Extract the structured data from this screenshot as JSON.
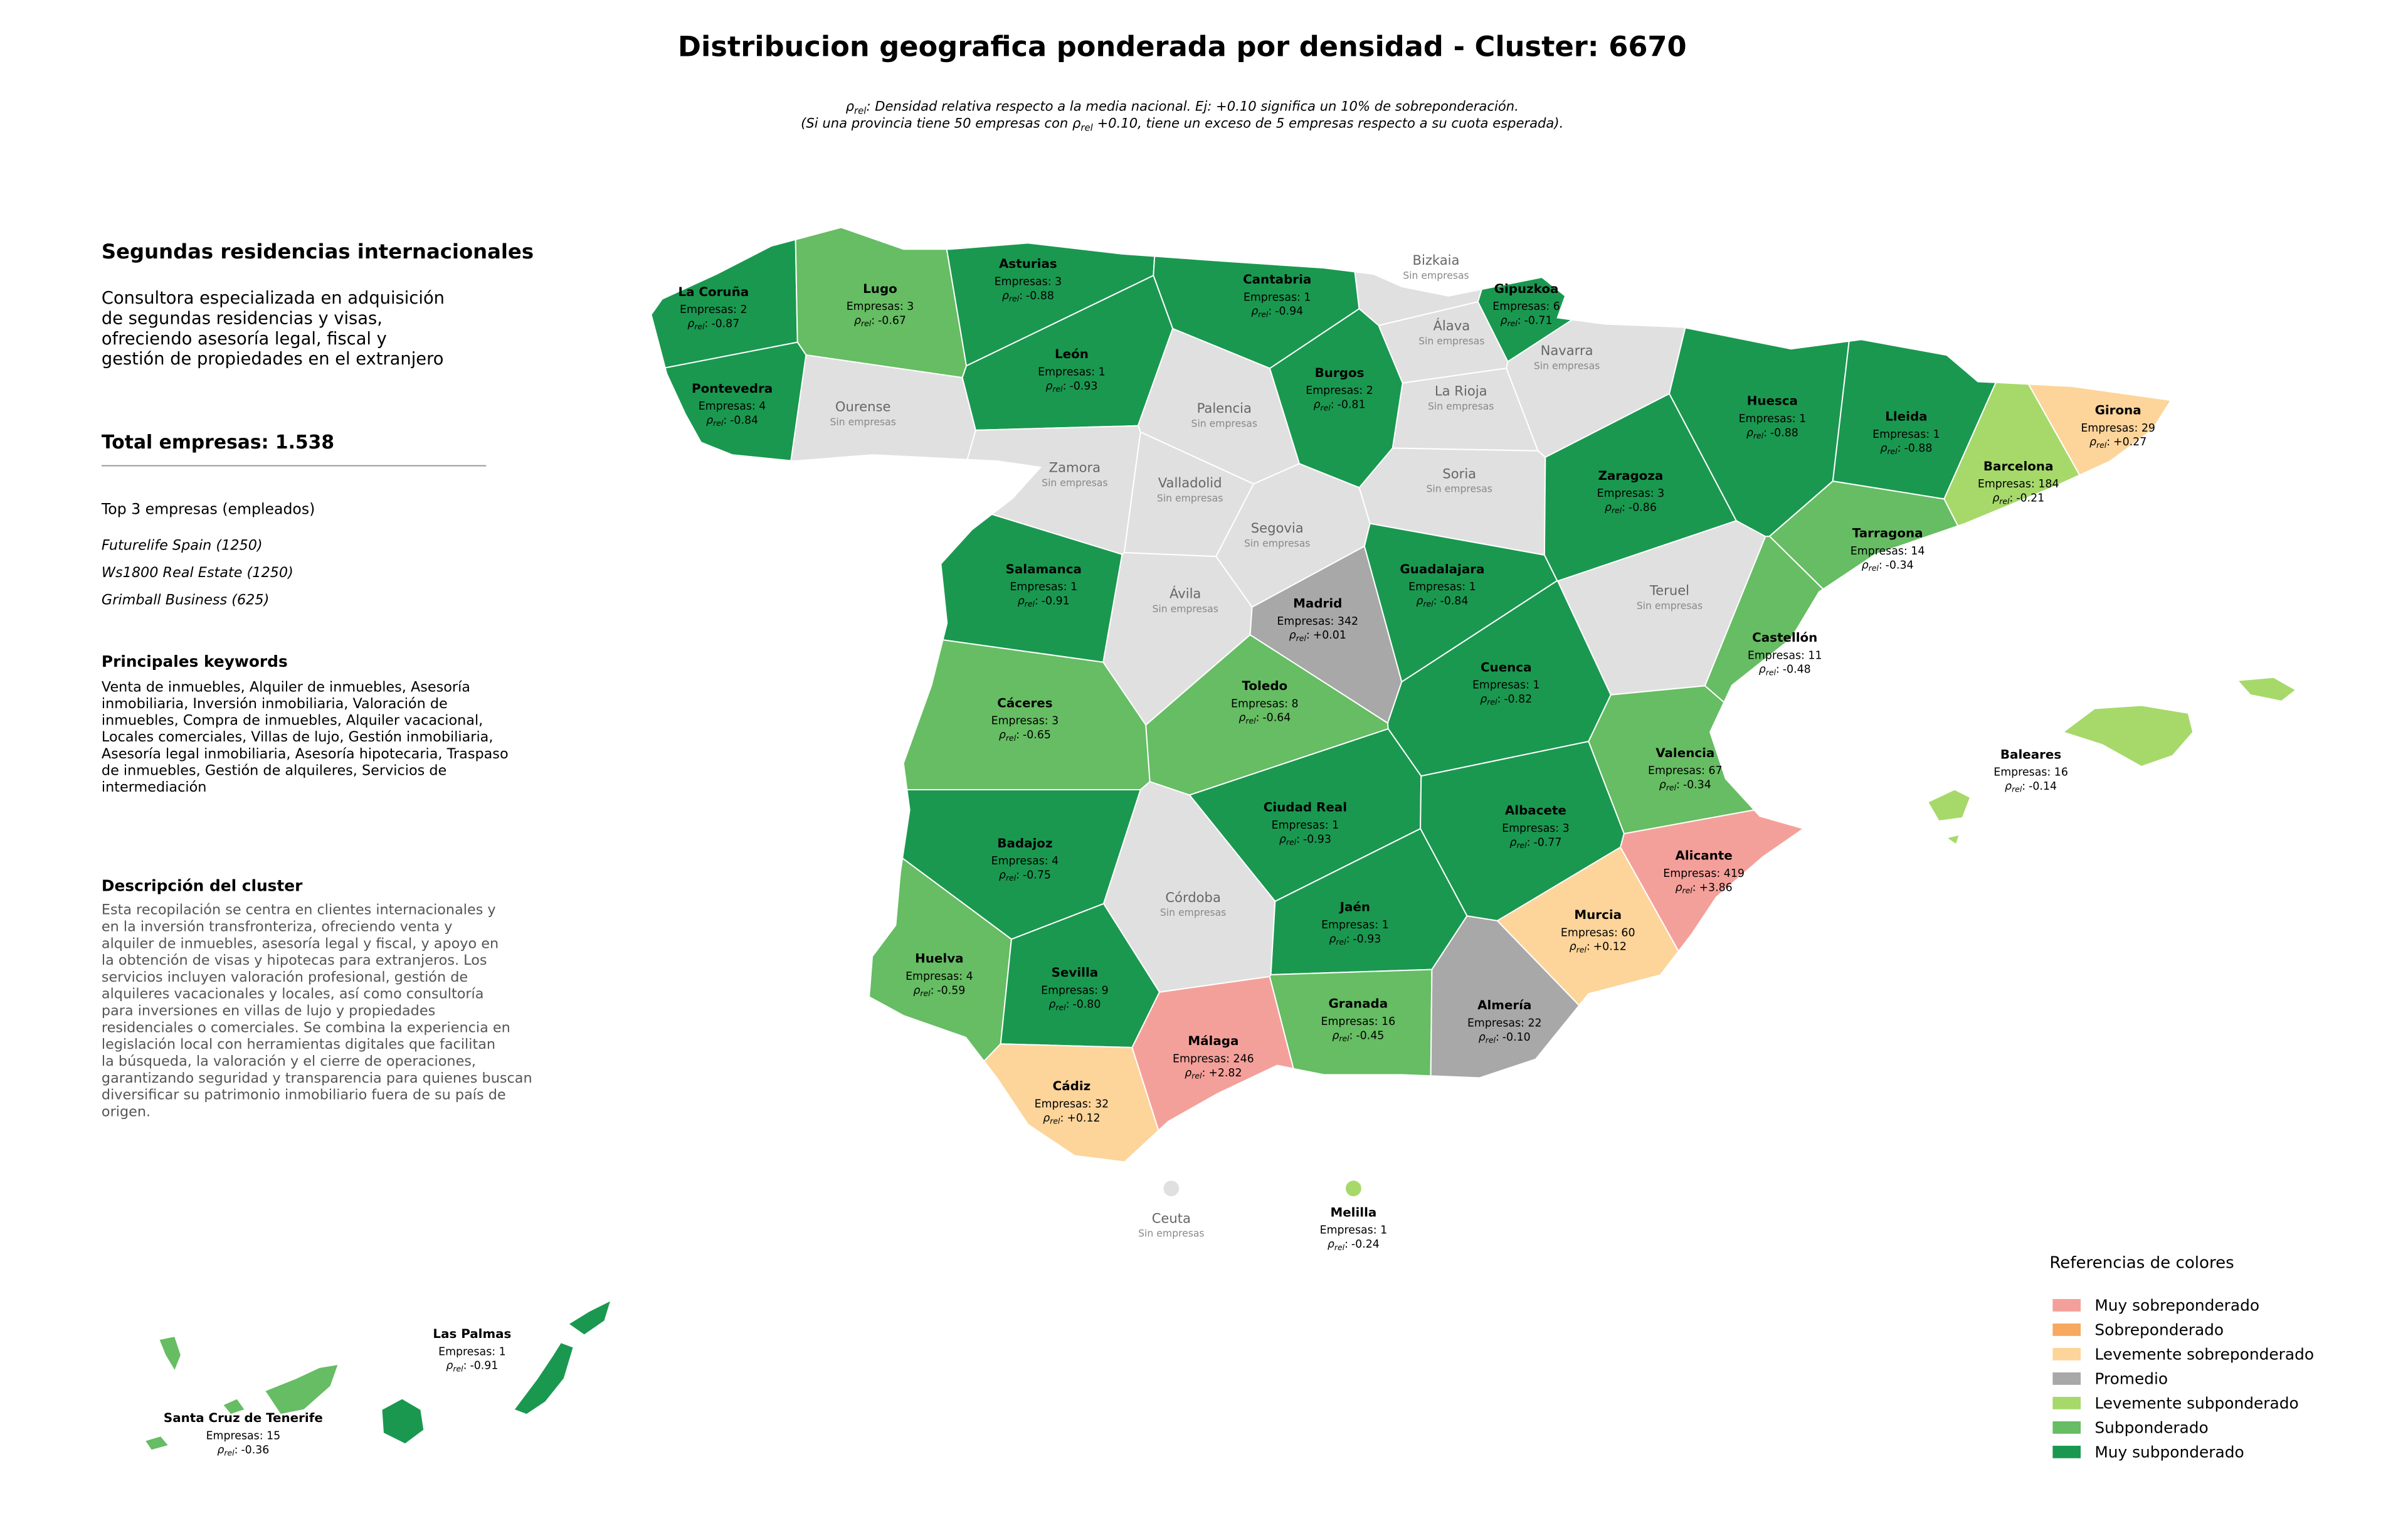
{
  "title": "Distribucion geografica ponderada por densidad - Cluster: 6670",
  "subtitle": {
    "line1": {
      "symbol": "ρ",
      "subscript": "rel",
      "text": ": Densidad relativa respecto a la media nacional. Ej: +0.10 significa un 10% de sobreponderación."
    },
    "line2": {
      "before": "(Si una provincia tiene 50 empresas con ρ",
      "subscript": "rel",
      "after": " +0.10, tiene un exceso de 5 empresas respecto a su cuota esperada)."
    }
  },
  "sidebar": {
    "heading": "Segundas residencias internacionales",
    "summary": [
      "Consultora especializada en adquisición",
      "de segundas residencias y visas,",
      "ofreciendo asesoría legal, fiscal y",
      "gestión de propiedades en el extranjero"
    ],
    "total": "Total empresas: 1.538",
    "top_title": "Top 3 empresas (empleados)",
    "top": [
      "Futurelife Spain (1250)",
      "Ws1800 Real Estate (1250)",
      "Grimball Business (625)"
    ],
    "keywords_title": "Principales keywords",
    "keywords": [
      "Venta de inmuebles, Alquiler de inmuebles, Asesoría",
      "inmobiliaria, Inversión inmobiliaria, Valoración de",
      "inmuebles, Compra de inmuebles, Alquiler vacacional,",
      "Locales comerciales, Villas de lujo, Gestión inmobiliaria,",
      "Asesoría legal inmobiliaria, Asesoría hipotecaria, Traspaso",
      "de inmuebles, Gestión de alquileres, Servicios de",
      "intermediación"
    ],
    "description_title": "Descripción del cluster",
    "description": [
      "Esta recopilación se centra en clientes internacionales y",
      "en la inversión transfronteriza, ofreciendo venta y",
      "alquiler de inmuebles, asesoría legal y fiscal, y apoyo en",
      "la obtención de visas y hipotecas para extranjeros. Los",
      "servicios incluyen valoración profesional, gestión de",
      "alquileres vacacionales y locales, así como consultoría",
      "para inversiones en villas de lujo y propiedades",
      "residenciales o comerciales. Se combina la experiencia en",
      "legislación local con herramientas digitales que facilitan",
      "la búsqueda, la valoración y el cierre de operaciones,",
      "garantizando seguridad y transparencia para quienes buscan",
      "diversificar su patrimonio inmobiliario fuera de su país de",
      "origen."
    ]
  },
  "rho_label": {
    "symbol": "ρ",
    "subscript": "rel",
    "suffix": ":"
  },
  "provinces": [
    {
      "name": "La Coruña",
      "companies": "Empresas: 2",
      "rho": "-0.87",
      "color": "#1a9850"
    },
    {
      "name": "Lugo",
      "companies": "Empresas: 3",
      "rho": "-0.67",
      "color": "#66bd63"
    },
    {
      "name": "Asturias",
      "companies": "Empresas: 3",
      "rho": "-0.88",
      "color": "#1a9850"
    },
    {
      "name": "Cantabria",
      "companies": "Empresas: 1",
      "rho": "-0.94",
      "color": "#1a9850"
    },
    {
      "name": "Bizkaia",
      "note": "Sin empresas",
      "color": "#e0e0e0"
    },
    {
      "name": "Gipuzkoa",
      "companies": "Empresas: 6",
      "rho": "-0.71",
      "color": "#1a9850"
    },
    {
      "name": "Pontevedra",
      "companies": "Empresas: 4",
      "rho": "-0.84",
      "color": "#1a9850"
    },
    {
      "name": "Ourense",
      "note": "Sin empresas",
      "color": "#e0e0e0"
    },
    {
      "name": "León",
      "companies": "Empresas: 1",
      "rho": "-0.93",
      "color": "#1a9850"
    },
    {
      "name": "Palencia",
      "note": "Sin empresas",
      "color": "#e0e0e0"
    },
    {
      "name": "Burgos",
      "companies": "Empresas: 2",
      "rho": "-0.81",
      "color": "#1a9850"
    },
    {
      "name": "Álava",
      "note": "Sin empresas",
      "color": "#e0e0e0"
    },
    {
      "name": "La Rioja",
      "note": "Sin empresas",
      "color": "#e0e0e0"
    },
    {
      "name": "Navarra",
      "note": "Sin empresas",
      "color": "#e0e0e0"
    },
    {
      "name": "Huesca",
      "companies": "Empresas: 1",
      "rho": "-0.88",
      "color": "#1a9850"
    },
    {
      "name": "Lleida",
      "companies": "Empresas: 1",
      "rho": "-0.88",
      "color": "#1a9850"
    },
    {
      "name": "Girona",
      "companies": "Empresas: 29",
      "rho": "+0.27",
      "color": "#fdd49a"
    },
    {
      "name": "Barcelona",
      "companies": "Empresas: 184",
      "rho": "-0.21",
      "color": "#a6d96a"
    },
    {
      "name": "Zamora",
      "note": "Sin empresas",
      "color": "#e0e0e0"
    },
    {
      "name": "Valladolid",
      "note": "Sin empresas",
      "color": "#e0e0e0"
    },
    {
      "name": "Soria",
      "note": "Sin empresas",
      "color": "#e0e0e0"
    },
    {
      "name": "Zaragoza",
      "companies": "Empresas: 3",
      "rho": "-0.86",
      "color": "#1a9850"
    },
    {
      "name": "Tarragona",
      "companies": "Empresas: 14",
      "rho": "-0.34",
      "color": "#66bd63"
    },
    {
      "name": "Segovia",
      "note": "Sin empresas",
      "color": "#e0e0e0"
    },
    {
      "name": "Salamanca",
      "companies": "Empresas: 1",
      "rho": "-0.91",
      "color": "#1a9850"
    },
    {
      "name": "Guadalajara",
      "companies": "Empresas: 1",
      "rho": "-0.84",
      "color": "#1a9850"
    },
    {
      "name": "Ávila",
      "note": "Sin empresas",
      "color": "#e0e0e0"
    },
    {
      "name": "Madrid",
      "companies": "Empresas: 342",
      "rho": "+0.01",
      "color": "#a8a8a8"
    },
    {
      "name": "Teruel",
      "note": "Sin empresas",
      "color": "#e0e0e0"
    },
    {
      "name": "Castellón",
      "companies": "Empresas: 11",
      "rho": "-0.48",
      "color": "#66bd63"
    },
    {
      "name": "Cáceres",
      "companies": "Empresas: 3",
      "rho": "-0.65",
      "color": "#66bd63"
    },
    {
      "name": "Toledo",
      "companies": "Empresas: 8",
      "rho": "-0.64",
      "color": "#66bd63"
    },
    {
      "name": "Cuenca",
      "companies": "Empresas: 1",
      "rho": "-0.82",
      "color": "#1a9850"
    },
    {
      "name": "Valencia",
      "companies": "Empresas: 67",
      "rho": "-0.34",
      "color": "#66bd63"
    },
    {
      "name": "Badajoz",
      "companies": "Empresas: 4",
      "rho": "-0.75",
      "color": "#1a9850"
    },
    {
      "name": "Ciudad Real",
      "companies": "Empresas: 1",
      "rho": "-0.93",
      "color": "#1a9850"
    },
    {
      "name": "Albacete",
      "companies": "Empresas: 3",
      "rho": "-0.77",
      "color": "#1a9850"
    },
    {
      "name": "Alicante",
      "companies": "Empresas: 419",
      "rho": "+3.86",
      "color": "#f4a09a"
    },
    {
      "name": "Córdoba",
      "note": "Sin empresas",
      "color": "#e0e0e0"
    },
    {
      "name": "Jaén",
      "companies": "Empresas: 1",
      "rho": "-0.93",
      "color": "#1a9850"
    },
    {
      "name": "Murcia",
      "companies": "Empresas: 60",
      "rho": "+0.12",
      "color": "#fdd49a"
    },
    {
      "name": "Huelva",
      "companies": "Empresas: 4",
      "rho": "-0.59",
      "color": "#66bd63"
    },
    {
      "name": "Sevilla",
      "companies": "Empresas: 9",
      "rho": "-0.80",
      "color": "#1a9850"
    },
    {
      "name": "Granada",
      "companies": "Empresas: 16",
      "rho": "-0.45",
      "color": "#66bd63"
    },
    {
      "name": "Almería",
      "companies": "Empresas: 22",
      "rho": "-0.10",
      "color": "#a8a8a8"
    },
    {
      "name": "Málaga",
      "companies": "Empresas: 246",
      "rho": "+2.82",
      "color": "#f4a09a"
    },
    {
      "name": "Cádiz",
      "companies": "Empresas: 32",
      "rho": "+0.12",
      "color": "#fdd49a"
    },
    {
      "name": "Baleares",
      "companies": "Empresas: 16",
      "rho": "-0.14",
      "color": "#a6d96a"
    },
    {
      "name": "Ceuta",
      "note": "Sin empresas",
      "color": "#e0e0e0"
    },
    {
      "name": "Melilla",
      "companies": "Empresas: 1",
      "rho": "-0.24",
      "color": "#a6d96a"
    },
    {
      "name": "Las Palmas",
      "companies": "Empresas: 1",
      "rho": "-0.91",
      "color": "#1a9850"
    },
    {
      "name": "Santa Cruz de Tenerife",
      "companies": "Empresas: 15",
      "rho": "-0.36",
      "color": "#66bd63"
    }
  ],
  "legend": {
    "title": "Referencias de colores",
    "items": [
      {
        "label": "Muy sobreponderado",
        "color": "#f4a09a"
      },
      {
        "label": "Sobreponderado",
        "color": "#f6a95f"
      },
      {
        "label": "Levemente sobreponderado",
        "color": "#fdd49a"
      },
      {
        "label": "Promedio",
        "color": "#a8a8a8"
      },
      {
        "label": "Levemente subponderado",
        "color": "#a6d96a"
      },
      {
        "label": "Subponderado",
        "color": "#66bd63"
      },
      {
        "label": "Muy subponderado",
        "color": "#1a9850"
      }
    ]
  }
}
